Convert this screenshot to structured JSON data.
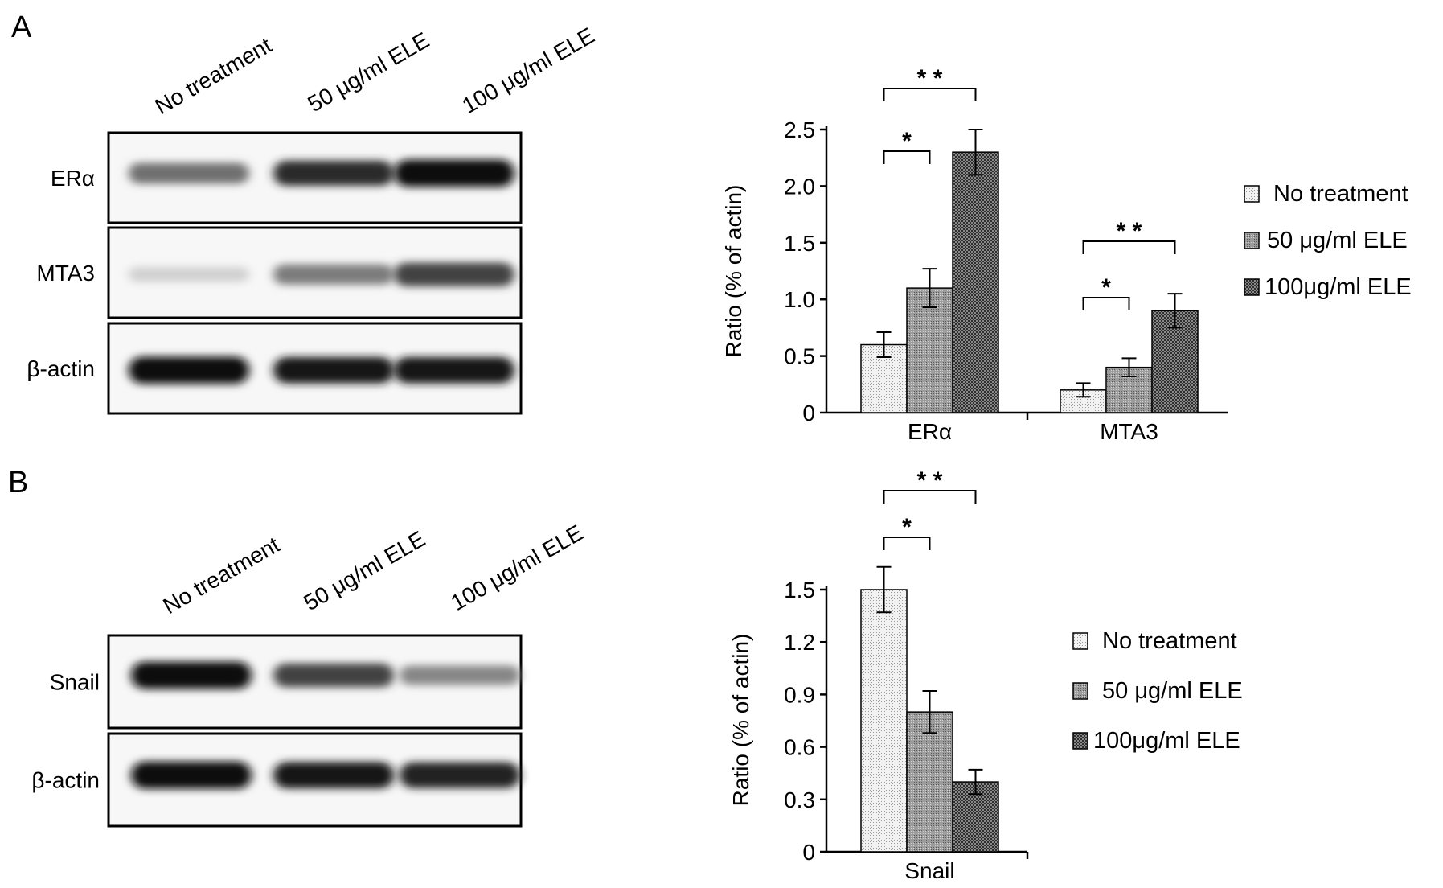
{
  "panels": [
    {
      "letter": "A",
      "blot": {
        "lanes": [
          "No treatment",
          "50 μg/ml ELE",
          "100 μg/ml ELE"
        ],
        "rows": [
          {
            "label": "ERα",
            "intensity": [
              0.55,
              0.85,
              1.0
            ]
          },
          {
            "label": "MTA3",
            "intensity": [
              0.12,
              0.5,
              0.75
            ]
          },
          {
            "label": "β-actin",
            "intensity": [
              1.0,
              0.95,
              0.95
            ]
          }
        ]
      }
    },
    {
      "letter": "B",
      "blot": {
        "lanes": [
          "No treatment",
          "50 μg/ml ELE",
          "100 μg/ml ELE"
        ],
        "rows": [
          {
            "label": "Snail",
            "intensity": [
              1.0,
              0.75,
              0.45
            ]
          },
          {
            "label": "β-actin",
            "intensity": [
              1.0,
              0.95,
              0.9
            ]
          }
        ]
      }
    }
  ],
  "chart_data": [
    {
      "type": "bar",
      "categories": [
        "ERα",
        "MTA3"
      ],
      "series": [
        {
          "name": "No treatment",
          "values": [
            0.6,
            0.2
          ],
          "errors": [
            0.11,
            0.06
          ],
          "pattern": "light"
        },
        {
          "name": "50 μg/ml ELE",
          "values": [
            1.1,
            0.4
          ],
          "errors": [
            0.17,
            0.08
          ],
          "pattern": "medium"
        },
        {
          "name": "100μg/ml ELE",
          "values": [
            2.3,
            0.9
          ],
          "errors": [
            0.2,
            0.15
          ],
          "pattern": "dark"
        }
      ],
      "ylabel": "Ratio (% of actin)",
      "ylim": [
        0,
        2.5
      ],
      "yticks": [
        "0",
        "0.5",
        "1.0",
        "1.5",
        "2.0",
        "2.5"
      ],
      "grid": false,
      "legend": "right",
      "annotations": [
        {
          "text": "*",
          "category": 0,
          "from": 0,
          "to": 1
        },
        {
          "text": "* *",
          "category": 0,
          "from": 0,
          "to": 2
        },
        {
          "text": "*",
          "category": 1,
          "from": 0,
          "to": 1
        },
        {
          "text": "* *",
          "category": 1,
          "from": 0,
          "to": 2
        }
      ]
    },
    {
      "type": "bar",
      "categories": [
        "Snail"
      ],
      "series": [
        {
          "name": "No treatment",
          "values": [
            1.5
          ],
          "errors": [
            0.13
          ],
          "pattern": "light"
        },
        {
          "name": "50 μg/ml ELE",
          "values": [
            0.8
          ],
          "errors": [
            0.12
          ],
          "pattern": "medium"
        },
        {
          "name": "100μg/ml ELE",
          "values": [
            0.4
          ],
          "errors": [
            0.07
          ],
          "pattern": "dark"
        }
      ],
      "ylabel": "Ratio (% of actin)",
      "ylim": [
        0,
        1.5
      ],
      "yticks": [
        "0",
        "0.3",
        "0.6",
        "0.9",
        "1.2",
        "1.5"
      ],
      "grid": false,
      "legend": "right",
      "annotations": [
        {
          "text": "*",
          "category": 0,
          "from": 0,
          "to": 1
        },
        {
          "text": "* *",
          "category": 0,
          "from": 0,
          "to": 2
        }
      ]
    }
  ]
}
